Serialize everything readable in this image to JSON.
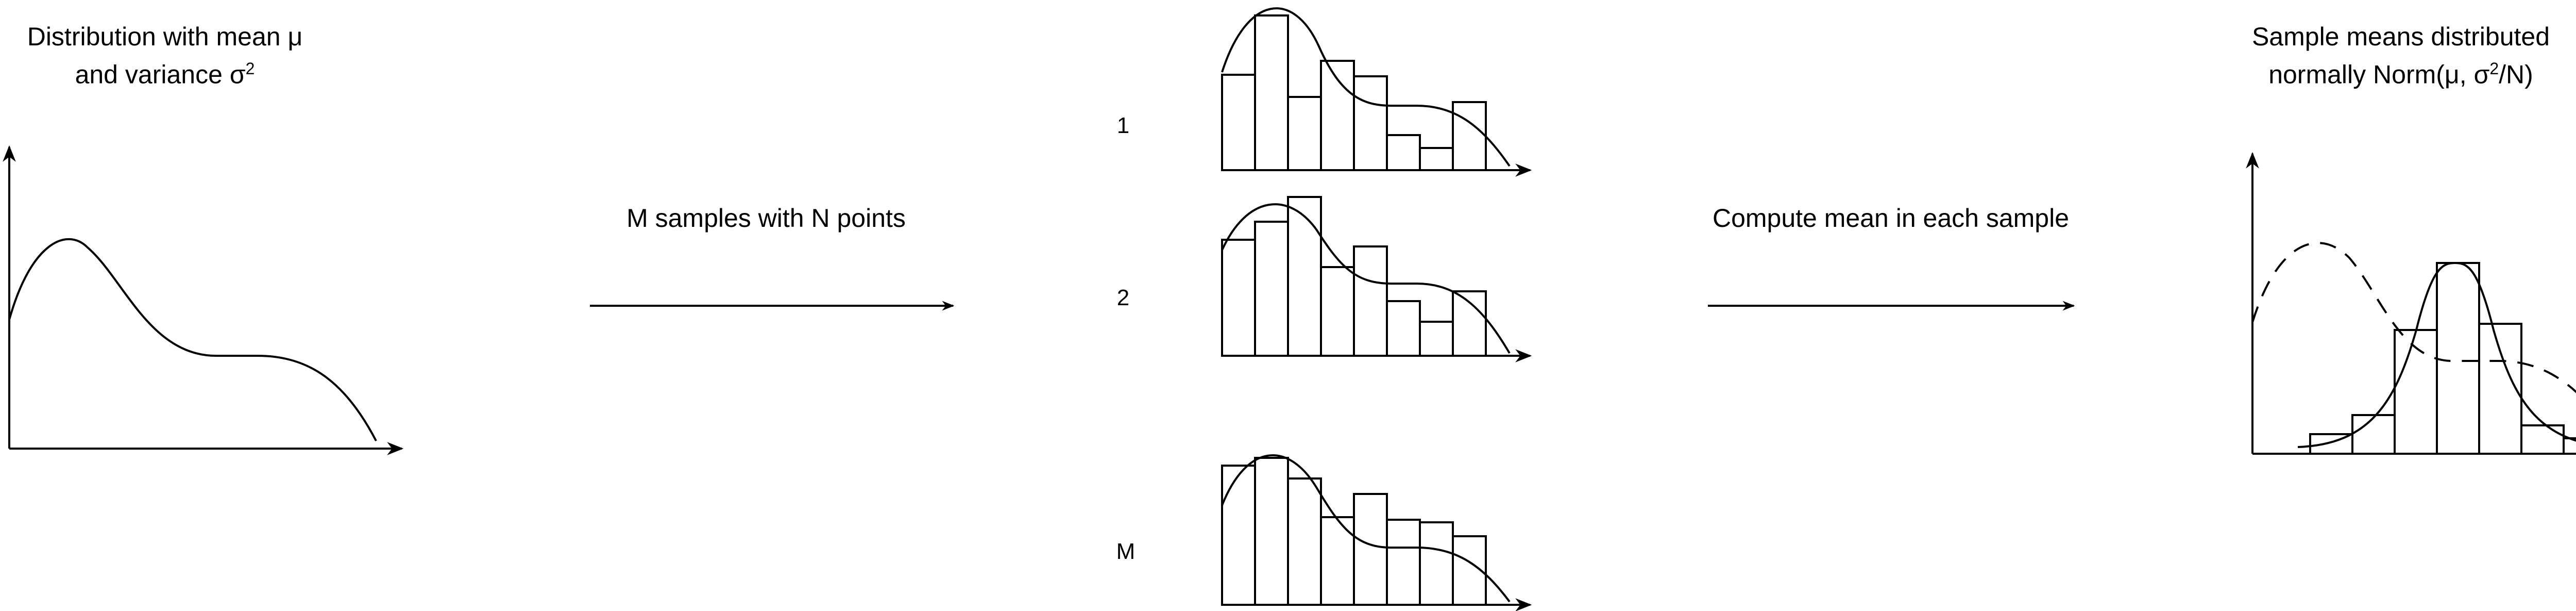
{
  "diagram": {
    "source": {
      "title_line1": "Distribution with mean μ",
      "title_line2_prefix": "and variance σ",
      "title_line2_sup": "2"
    },
    "arrow_left": {
      "label": "M samples with N points"
    },
    "samples": [
      {
        "label": "1"
      },
      {
        "label": "2"
      },
      {
        "label": "M"
      }
    ],
    "arrow_right": {
      "label": "Compute mean in each sample"
    },
    "result": {
      "title_line1": "Sample means distributed",
      "title_line2_prefix": "normally Norm(μ, σ",
      "title_line2_sup": "2",
      "title_line2_suffix": "/N)"
    }
  }
}
